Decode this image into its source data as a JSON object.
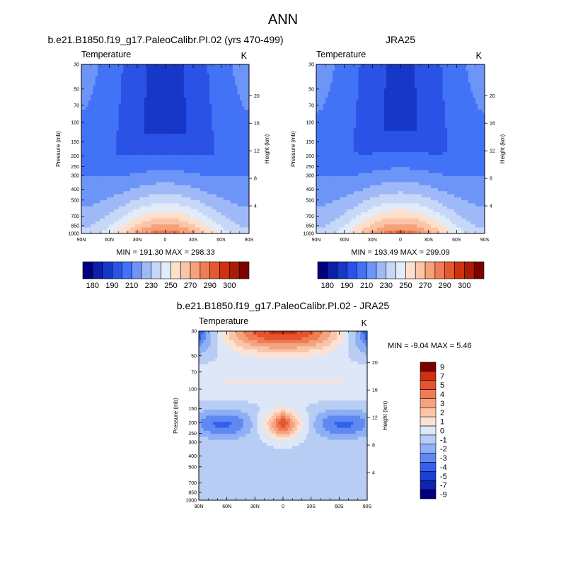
{
  "main_title": "ANN",
  "colors": {
    "abs_scale": [
      "#00007f",
      "#0b1fa8",
      "#1737c8",
      "#2b52e6",
      "#4272f6",
      "#6d95f8",
      "#9fb9f8",
      "#c7d7f7",
      "#e2ebf8",
      "#fde0cc",
      "#fbc4a5",
      "#f6a17b",
      "#f07c55",
      "#e6592f",
      "#cf3211",
      "#ab1c06",
      "#7d0000"
    ],
    "diff_scale": [
      "#00007f",
      "#0c23b4",
      "#1a40d8",
      "#3261ed",
      "#5f89f1",
      "#8eaef5",
      "#b8cdf4",
      "#dde7f8",
      "#fbe2d3",
      "#f9c4a8",
      "#f5a27e",
      "#ee7c55",
      "#e5542d",
      "#cd3110",
      "#7d0000"
    ]
  },
  "chart_data": [
    {
      "type": "heatmap",
      "title": "b.e21.B1850.f19_g17.PaleoCalibr.PI.02 (yrs 470-499)",
      "left_label": "Temperature",
      "right_label": "K",
      "xlabel": "",
      "ylabel": "Pressure (mb)",
      "y2label": "Height (km)",
      "x_ticks": [
        "90N",
        "60N",
        "30N",
        "0",
        "30S",
        "60S",
        "90S"
      ],
      "y_ticks": [
        "30",
        "50",
        "70",
        "100",
        "150",
        "200",
        "250",
        "300",
        "400",
        "500",
        "700",
        "850",
        "1000"
      ],
      "y2_ticks": [
        "20",
        "16",
        "12",
        "8",
        "4"
      ],
      "min_max_text": "MIN = 191.30   MAX = 298.33",
      "min": 191.3,
      "max": 298.33,
      "colorbar": {
        "labels": [
          "180",
          "190",
          "210",
          "230",
          "250",
          "270",
          "290",
          "300"
        ]
      }
    },
    {
      "type": "heatmap",
      "title": "JRA25",
      "left_label": "Temperature",
      "right_label": "K",
      "xlabel": "",
      "ylabel": "Pressure (mb)",
      "y2label": "Height (km)",
      "x_ticks": [
        "90N",
        "60N",
        "30N",
        "0",
        "30S",
        "60S",
        "90S"
      ],
      "y_ticks": [
        "30",
        "50",
        "70",
        "100",
        "150",
        "200",
        "250",
        "300",
        "400",
        "500",
        "700",
        "850",
        "1000"
      ],
      "y2_ticks": [
        "20",
        "16",
        "12",
        "8",
        "4"
      ],
      "min_max_text": "MIN = 193.49   MAX = 299.09",
      "min": 193.49,
      "max": 299.09,
      "colorbar": {
        "labels": [
          "180",
          "190",
          "210",
          "230",
          "250",
          "270",
          "290",
          "300"
        ]
      }
    },
    {
      "type": "heatmap",
      "title": "b.e21.B1850.f19_g17.PaleoCalibr.PI.02 - JRA25",
      "left_label": "Temperature",
      "right_label": "K",
      "xlabel": "",
      "ylabel": "Pressure (mb)",
      "y2label": "Height (km)",
      "x_ticks": [
        "90N",
        "60N",
        "30N",
        "0",
        "30S",
        "60S",
        "90S"
      ],
      "y_ticks": [
        "30",
        "50",
        "70",
        "100",
        "150",
        "200",
        "250",
        "300",
        "400",
        "500",
        "700",
        "850",
        "1000"
      ],
      "y2_ticks": [
        "20",
        "16",
        "12",
        "8",
        "4"
      ],
      "min_max_text": "MIN =  -9.04   MAX =    5.46",
      "min": -9.04,
      "max": 5.46,
      "colorbar": {
        "labels": [
          "9",
          "7",
          "5",
          "4",
          "3",
          "2",
          "1",
          "0",
          "-1",
          "-2",
          "-3",
          "-4",
          "-5",
          "-7",
          "-9"
        ]
      }
    }
  ]
}
